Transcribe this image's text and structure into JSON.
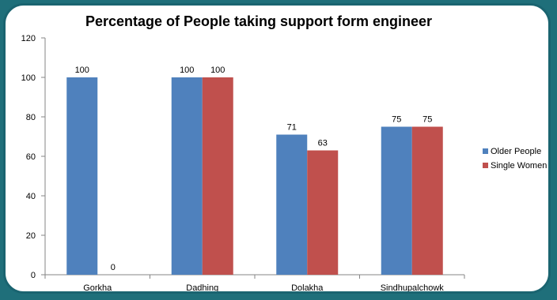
{
  "chart_data": {
    "type": "bar",
    "title": "Percentage of People taking support form engineer",
    "xlabel": "",
    "ylabel": "",
    "categories": [
      "Gorkha",
      "Dadhing",
      "Dolakha",
      "Sindhupalchowk"
    ],
    "series": [
      {
        "name": "Older People",
        "values": [
          100,
          100,
          71,
          75
        ],
        "color": "#4f81bd"
      },
      {
        "name": "Single Women",
        "values": [
          0,
          100,
          63,
          75
        ],
        "color": "#c0504d"
      }
    ],
    "ylim": [
      0,
      120
    ],
    "yticks": [
      0,
      20,
      40,
      60,
      80,
      100,
      120
    ],
    "grid": false,
    "legend_position": "right"
  }
}
